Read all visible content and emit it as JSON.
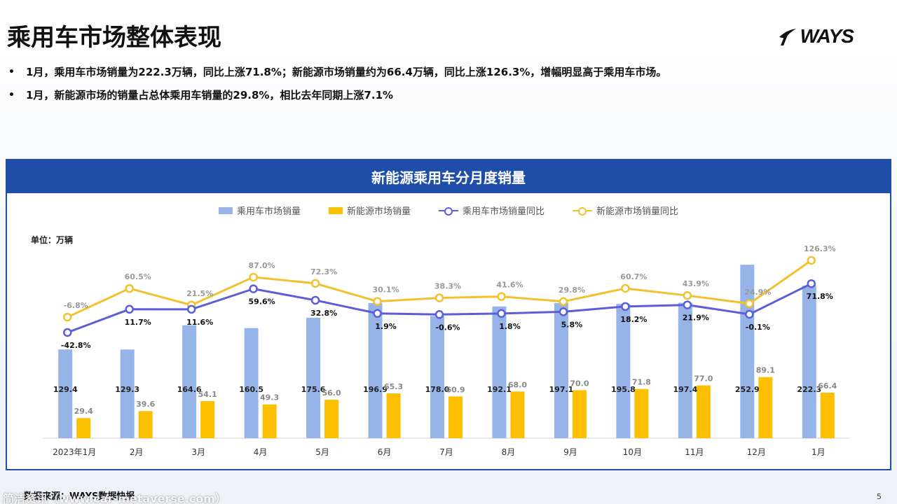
{
  "page": {
    "title": "乘用车市场整体表现",
    "logo_text": "WAYS",
    "bullets": [
      "1月，乘用车市场销量为222.3万辆，同比上涨71.8%；新能源市场销量约为66.4万辆，同比上涨126.3%，增幅明显高于乘用车市场。",
      "1月，新能源市场的销量占总体乘用车销量的29.8%，相比去年同期上涨7.1%"
    ],
    "panel_title": "新能源乘用车分月度销量",
    "unit_label": "单位：万辆",
    "source": "数据来源：WAYS数据快报",
    "watermark": "简洁资讯（www.car-metaverse.com）",
    "page_number": "5"
  },
  "colors": {
    "passenger_bar": "#96b4e8",
    "nev_bar": "#fdc000",
    "passenger_line": "#5b5ed6",
    "nev_line": "#f2c12e",
    "header": "#1f4ea8"
  },
  "chart_data": {
    "type": "bar",
    "categories": [
      "2023年1月",
      "2月",
      "3月",
      "4月",
      "5月",
      "6月",
      "7月",
      "8月",
      "9月",
      "10月",
      "11月",
      "12月",
      "1月"
    ],
    "series": [
      {
        "name": "乘用车市场销量",
        "kind": "bar",
        "axis": "left",
        "values": [
          129.4,
          129.3,
          164.6,
          160.5,
          175.6,
          196.9,
          178.0,
          192.1,
          197.1,
          195.8,
          197.4,
          252.9,
          222.3
        ],
        "labels": [
          "129.4",
          "129.3",
          "164.6",
          "160.5",
          "175.6",
          "196.9",
          "178.0",
          "192.1",
          "197.1",
          "195.8",
          "197.4",
          "252.9",
          "222.3"
        ]
      },
      {
        "name": "新能源市场销量",
        "kind": "bar",
        "axis": "left",
        "values": [
          29.4,
          39.6,
          54.1,
          49.3,
          56.0,
          65.3,
          60.9,
          68.0,
          70.0,
          71.8,
          77.0,
          89.1,
          66.4
        ],
        "labels": [
          "29.4",
          "39.6",
          "54.1",
          "49.3",
          "56.0",
          "65.3",
          "60.9",
          "68.0",
          "70.0",
          "71.8",
          "77.0",
          "89.1",
          "66.4"
        ]
      },
      {
        "name": "乘用车市场销量同比",
        "kind": "line",
        "axis": "right",
        "values": [
          -42.8,
          11.7,
          11.6,
          59.6,
          32.8,
          1.9,
          -0.6,
          1.8,
          5.8,
          18.2,
          21.9,
          -0.1,
          71.8
        ],
        "labels": [
          "-42.8%",
          "11.7%",
          "11.6%",
          "59.6%",
          "32.8%",
          "1.9%",
          "-0.6%",
          "1.8%",
          "5.8%",
          "18.2%",
          "21.9%",
          "-0.1%",
          "71.8%"
        ]
      },
      {
        "name": "新能源市场销量同比",
        "kind": "line",
        "axis": "right",
        "values": [
          -6.8,
          60.5,
          21.5,
          87.0,
          72.3,
          30.1,
          38.3,
          41.6,
          29.8,
          60.7,
          43.9,
          24.9,
          126.3
        ],
        "labels": [
          "-6.8%",
          "60.5%",
          "21.5%",
          "87.0%",
          "72.3%",
          "30.1%",
          "38.3%",
          "41.6%",
          "29.8%",
          "60.7%",
          "43.9%",
          "24.9%",
          "126.3%"
        ]
      }
    ],
    "ylim_left": [
      0,
      270
    ],
    "legend_position": "top"
  }
}
